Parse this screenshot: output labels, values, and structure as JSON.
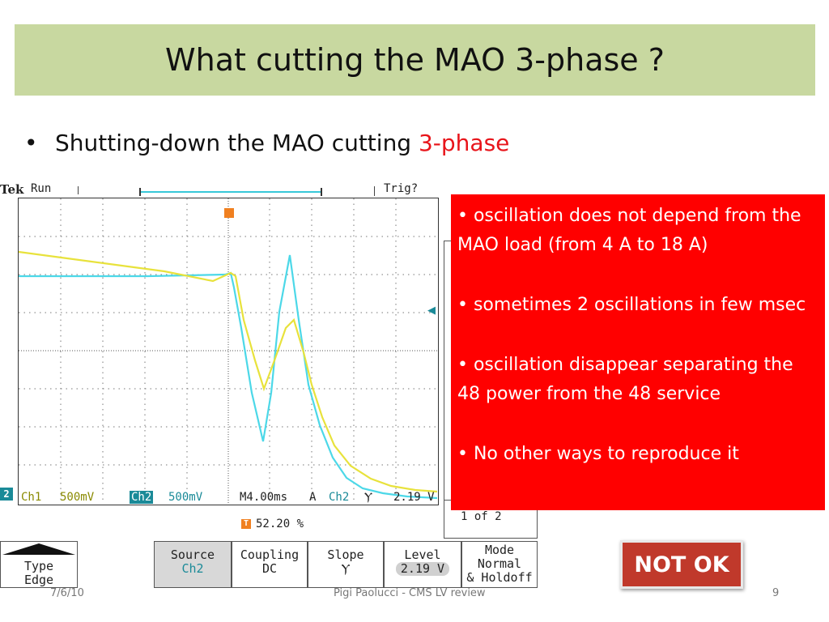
{
  "slide": {
    "title": "What cutting the MAO 3-phase ?",
    "bullet_main": "Shutting-down the MAO cutting ",
    "bullet_highlight": "3-phase"
  },
  "scope": {
    "brand": "Tek",
    "run_state": "Run",
    "trig_state": "Trig?",
    "trigger_marker": "T",
    "ch2_marker": "2",
    "ch1_label": "Ch1",
    "ch1_scale": "500mV",
    "ch2_label": "Ch2",
    "ch2_scale": "500mV",
    "timebase": "M4.00ms",
    "trig_mode_letter": "A",
    "trig_source": "Ch2",
    "trig_slope_symbol": "Ⲩ",
    "trig_level": "2.19 V",
    "trig_position": "52.20 %",
    "page_indicator": "1 of 2",
    "colors": {
      "ch1": "#e8e23c",
      "ch2": "#4cd8e8",
      "trigger": "#f08020"
    },
    "buttons": {
      "type_label": "Type",
      "type_value": "Edge",
      "source_label": "Source",
      "source_value": "Ch2",
      "coupling_label": "Coupling",
      "coupling_value": "DC",
      "slope_label": "Slope",
      "slope_value": "Ⲩ",
      "level_label": "Level",
      "level_value": "2.19 V",
      "mode_label": "Mode",
      "mode_value1": "Normal",
      "mode_value2": "& Holdoff"
    }
  },
  "callout": {
    "items": [
      "• oscillation does not depend from the MAO load (from 4 A to 18 A)",
      "• sometimes 2 oscillations in few msec",
      "• oscillation disappear separating the 48 power from the 48 service",
      "• No other ways to reproduce it"
    ]
  },
  "badge": {
    "text": "NOT OK",
    "color": "#c0392b"
  },
  "footer": {
    "date": "7/6/10",
    "center": "Pigi Paolucci - CMS LV review",
    "page_number": "9"
  }
}
